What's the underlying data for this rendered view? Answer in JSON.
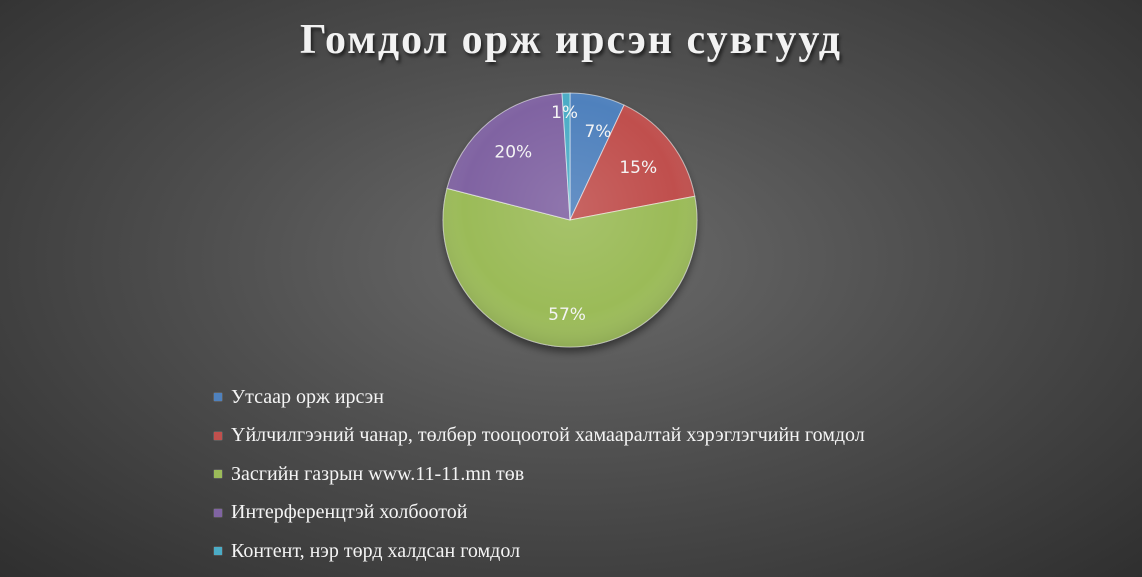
{
  "chart_data": {
    "type": "pie",
    "title": "Гомдол орж ирсэн сувгууд",
    "categories": [
      "Утсаар орж ирсэн",
      "Үйлчилгээний чанар, төлбөр тооцоотой хамааралтай хэрэглэгчийн гомдол",
      "Засгийн газрын www.11-11.mn төв",
      "Интерференцтэй холбоотой",
      "Контент, нэр төрд халдсан гомдол"
    ],
    "values": [
      7,
      15,
      57,
      20,
      1
    ],
    "data_labels": [
      "7%",
      "15%",
      "57%",
      "20%",
      "1%"
    ],
    "colors": [
      "#4f81bd",
      "#c0504d",
      "#9bbb59",
      "#8064a2",
      "#4bacc6"
    ],
    "legend_position": "bottom"
  }
}
